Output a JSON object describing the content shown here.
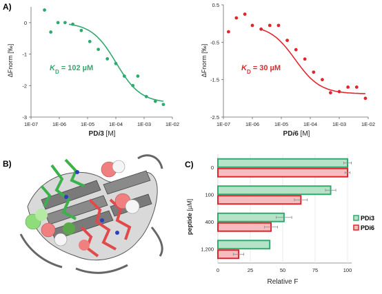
{
  "panels": {
    "a": "A)",
    "b": "B)",
    "c": "C)"
  },
  "chart_data": [
    {
      "type": "scatter",
      "id": "pdi3",
      "color": "#2eaa6e",
      "ylabel": "ΔFnorm [‰]",
      "xlabel_bold": "PD",
      "xlabel_italic": "i",
      "xlabel_bold2": "3",
      "xlabel_unit": " [M]",
      "xscale": "log",
      "xlim": [
        1e-07,
        0.01
      ],
      "ylim": [
        -3,
        0.5
      ],
      "yticks": [
        0,
        -1,
        -2,
        -3
      ],
      "yticklabels": [
        "0",
        "-1",
        "-2",
        "-3"
      ],
      "xtick_labels": [
        "1E-07",
        "1E-06",
        "1E-05",
        "1E-04",
        "1E-03",
        "1E-02"
      ],
      "kd_label_pre": "K",
      "kd_label_sub": "D",
      "kd_label_post": " = 102 µM",
      "fit": {
        "top": 0.0,
        "bottom": -2.55,
        "kd": 0.000102
      },
      "points": [
        {
          "x": 3e-07,
          "y": 0.4
        },
        {
          "x": 5e-07,
          "y": -0.3
        },
        {
          "x": 9e-07,
          "y": 0.0
        },
        {
          "x": 1.6e-06,
          "y": 0.0
        },
        {
          "x": 3e-06,
          "y": -0.05
        },
        {
          "x": 6e-06,
          "y": -0.25
        },
        {
          "x": 1.2e-05,
          "y": -0.6
        },
        {
          "x": 2.4e-05,
          "y": -0.85
        },
        {
          "x": 5e-05,
          "y": -1.15
        },
        {
          "x": 0.0001,
          "y": -1.3
        },
        {
          "x": 0.0002,
          "y": -1.7
        },
        {
          "x": 0.0004,
          "y": -2.0
        },
        {
          "x": 0.0006,
          "y": -1.7
        },
        {
          "x": 0.0012,
          "y": -2.35
        },
        {
          "x": 0.0025,
          "y": -2.5
        },
        {
          "x": 0.0048,
          "y": -2.6
        }
      ]
    },
    {
      "type": "scatter",
      "id": "pdi6",
      "color": "#e0262c",
      "ylabel": "ΔFnorm [‰]",
      "xlabel_bold": "PD",
      "xlabel_italic": "i",
      "xlabel_bold2": "6",
      "xlabel_unit": " [M]",
      "xscale": "log",
      "xlim": [
        1e-07,
        0.01
      ],
      "ylim": [
        -2.5,
        0.5
      ],
      "yticks": [
        0.5,
        -0.5,
        -1.5,
        -2.5
      ],
      "yticklabels": [
        "0.5",
        "-0.5",
        "-1.5",
        "-2.5"
      ],
      "xtick_labels": [
        "1E-07",
        "1E-06",
        "1E-05",
        "1E-04",
        "1E-03",
        "1E-02"
      ],
      "kd_label_pre": "K",
      "kd_label_sub": "D",
      "kd_label_post": " = 30 µM",
      "fit": {
        "top": -0.04,
        "bottom": -1.88,
        "kd": 3e-05
      },
      "points": [
        {
          "x": 1.5e-07,
          "y": -0.22
        },
        {
          "x": 2.8e-07,
          "y": 0.15
        },
        {
          "x": 5.5e-07,
          "y": 0.25
        },
        {
          "x": 1e-06,
          "y": -0.05
        },
        {
          "x": 2e-06,
          "y": -0.15
        },
        {
          "x": 4e-06,
          "y": -0.05
        },
        {
          "x": 8e-06,
          "y": -0.05
        },
        {
          "x": 1.6e-05,
          "y": -0.45
        },
        {
          "x": 3.2e-05,
          "y": -0.7
        },
        {
          "x": 6.5e-05,
          "y": -0.95
        },
        {
          "x": 0.00013,
          "y": -1.3
        },
        {
          "x": 0.00026,
          "y": -1.5
        },
        {
          "x": 0.0005,
          "y": -1.85
        },
        {
          "x": 0.001,
          "y": -1.82
        },
        {
          "x": 0.002,
          "y": -1.7
        },
        {
          "x": 0.004,
          "y": -1.7
        },
        {
          "x": 0.008,
          "y": -2.0
        }
      ]
    },
    {
      "type": "bar",
      "id": "relative-f",
      "orientation": "horizontal",
      "categories": [
        "0",
        "100",
        "400",
        "1,200"
      ],
      "ylabel_bold": "peptide",
      "ylabel_unit": " [µM]",
      "xlabel": "Relative F",
      "xlim": [
        0,
        100
      ],
      "xticks": [
        "0",
        "25",
        "50",
        "75",
        "100"
      ],
      "series": [
        {
          "name": "PDi3",
          "color": "#2eaa6e",
          "fill": "#b6e3c8",
          "values": [
            100,
            87,
            51,
            40
          ],
          "errors": [
            3,
            4,
            6,
            0
          ]
        },
        {
          "name": "PDi6",
          "color": "#e0262c",
          "fill": "#f6bcc0",
          "values": [
            100,
            64,
            41,
            16
          ],
          "errors": [
            2,
            5,
            5,
            4
          ]
        }
      ],
      "legend_position": "right"
    }
  ]
}
